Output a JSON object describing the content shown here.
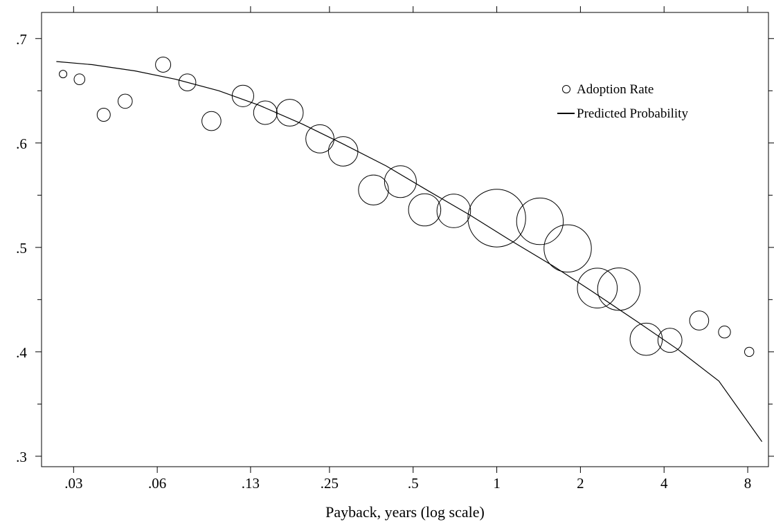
{
  "chart_data": {
    "type": "scatter",
    "xlabel": "Payback, years (log scale)",
    "ylabel": "",
    "x_scale": "log",
    "xlim": [
      0.023,
      9.5
    ],
    "ylim": [
      0.29,
      0.725
    ],
    "x_ticks": [
      {
        "value": 0.03,
        "label": ".03"
      },
      {
        "value": 0.06,
        "label": ".06"
      },
      {
        "value": 0.13,
        "label": ".13"
      },
      {
        "value": 0.25,
        "label": ".25"
      },
      {
        "value": 0.5,
        "label": ".5"
      },
      {
        "value": 1,
        "label": "1"
      },
      {
        "value": 2,
        "label": "2"
      },
      {
        "value": 4,
        "label": "4"
      },
      {
        "value": 8,
        "label": "8"
      }
    ],
    "y_ticks": [
      {
        "value": 0.3,
        "label": ".3"
      },
      {
        "value": 0.4,
        "label": ".4"
      },
      {
        "value": 0.5,
        "label": ".5"
      },
      {
        "value": 0.6,
        "label": ".6"
      },
      {
        "value": 0.7,
        "label": ".7"
      }
    ],
    "y_minor_ticks": [
      0.35,
      0.45,
      0.55,
      0.65
    ],
    "grid": false,
    "legend_position": "top-right",
    "series": [
      {
        "name": "Adoption Rate",
        "kind": "bubble",
        "points": [
          {
            "x": 0.0275,
            "y": 0.666,
            "size": 0.04
          },
          {
            "x": 0.0315,
            "y": 0.661,
            "size": 0.08
          },
          {
            "x": 0.0385,
            "y": 0.627,
            "size": 0.12
          },
          {
            "x": 0.046,
            "y": 0.64,
            "size": 0.14
          },
          {
            "x": 0.063,
            "y": 0.675,
            "size": 0.16
          },
          {
            "x": 0.077,
            "y": 0.658,
            "size": 0.2
          },
          {
            "x": 0.094,
            "y": 0.621,
            "size": 0.25
          },
          {
            "x": 0.122,
            "y": 0.645,
            "size": 0.32
          },
          {
            "x": 0.147,
            "y": 0.629,
            "size": 0.38
          },
          {
            "x": 0.18,
            "y": 0.629,
            "size": 0.5
          },
          {
            "x": 0.231,
            "y": 0.604,
            "size": 0.55
          },
          {
            "x": 0.28,
            "y": 0.592,
            "size": 0.6
          },
          {
            "x": 0.36,
            "y": 0.555,
            "size": 0.62
          },
          {
            "x": 0.45,
            "y": 0.563,
            "size": 0.7
          },
          {
            "x": 0.55,
            "y": 0.536,
            "size": 0.72
          },
          {
            "x": 0.7,
            "y": 0.535,
            "size": 0.78
          },
          {
            "x": 1.0,
            "y": 0.528,
            "size": 2.3
          },
          {
            "x": 1.43,
            "y": 0.525,
            "size": 1.5
          },
          {
            "x": 1.8,
            "y": 0.499,
            "size": 1.55
          },
          {
            "x": 2.3,
            "y": 0.461,
            "size": 1.1
          },
          {
            "x": 2.75,
            "y": 0.46,
            "size": 1.25
          },
          {
            "x": 3.45,
            "y": 0.412,
            "size": 0.72
          },
          {
            "x": 4.2,
            "y": 0.411,
            "size": 0.4
          },
          {
            "x": 5.35,
            "y": 0.43,
            "size": 0.25
          },
          {
            "x": 6.6,
            "y": 0.419,
            "size": 0.1
          },
          {
            "x": 8.1,
            "y": 0.4,
            "size": 0.06
          }
        ]
      },
      {
        "name": "Predicted Probability",
        "kind": "line",
        "points": [
          {
            "x": 0.026,
            "y": 0.678
          },
          {
            "x": 0.035,
            "y": 0.675
          },
          {
            "x": 0.05,
            "y": 0.669
          },
          {
            "x": 0.07,
            "y": 0.661
          },
          {
            "x": 0.1,
            "y": 0.65
          },
          {
            "x": 0.14,
            "y": 0.636
          },
          {
            "x": 0.2,
            "y": 0.618
          },
          {
            "x": 0.28,
            "y": 0.599
          },
          {
            "x": 0.4,
            "y": 0.578
          },
          {
            "x": 0.56,
            "y": 0.555
          },
          {
            "x": 0.8,
            "y": 0.531
          },
          {
            "x": 1.1,
            "y": 0.508
          },
          {
            "x": 1.6,
            "y": 0.482
          },
          {
            "x": 2.2,
            "y": 0.458
          },
          {
            "x": 3.2,
            "y": 0.429
          },
          {
            "x": 4.5,
            "y": 0.402
          },
          {
            "x": 6.3,
            "y": 0.372
          },
          {
            "x": 9.0,
            "y": 0.314
          }
        ]
      }
    ]
  }
}
